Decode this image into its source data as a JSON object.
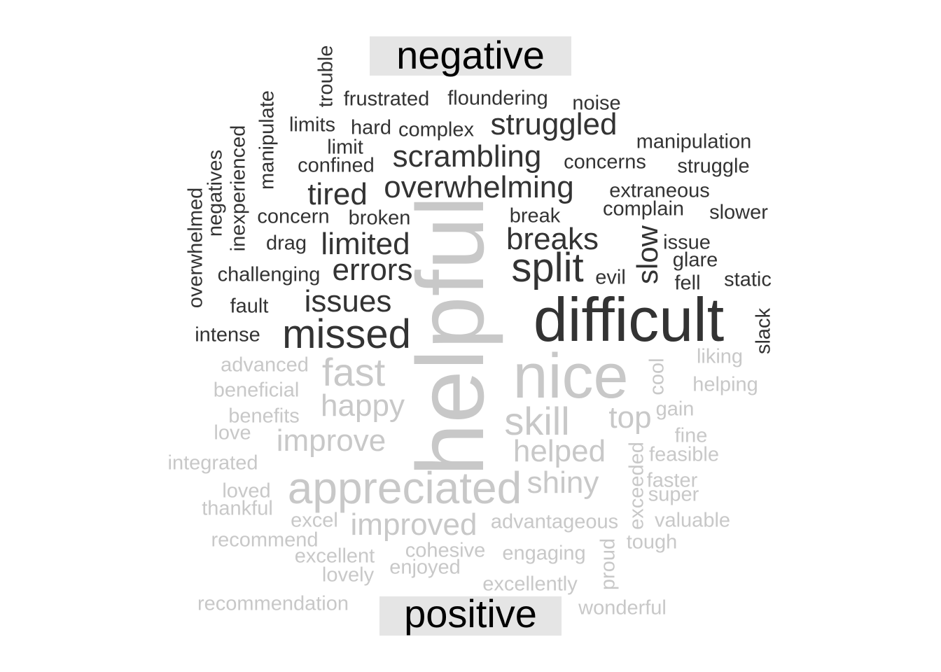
{
  "groups": {
    "negative": {
      "label": "negative",
      "color": "#333333",
      "words": [
        "difficult",
        "split",
        "missed",
        "breaks",
        "struggled",
        "scrambling",
        "overwhelming",
        "tired",
        "limited",
        "errors",
        "issues",
        "slow",
        "frustrated",
        "floundering",
        "noise",
        "limits",
        "hard",
        "complex",
        "manipulation",
        "limit",
        "concerns",
        "struggle",
        "confined",
        "extraneous",
        "complain",
        "slower",
        "concern",
        "broken",
        "break",
        "issue",
        "drag",
        "glare",
        "challenging",
        "evil",
        "fell",
        "static",
        "fault",
        "intense",
        "slack",
        "trouble",
        "manipulate",
        "inexperienced",
        "negatives",
        "overwhelmed"
      ]
    },
    "positive": {
      "label": "positive",
      "color": "#c8c8c8",
      "words": [
        "helpful",
        "nice",
        "appreciated",
        "fast",
        "happy",
        "skill",
        "improve",
        "improved",
        "helped",
        "shiny",
        "top",
        "advanced",
        "beneficial",
        "benefits",
        "love",
        "integrated",
        "loved",
        "thankful",
        "excel",
        "recommend",
        "excellent",
        "lovely",
        "recommendation",
        "cohesive",
        "enjoyed",
        "engaging",
        "excellently",
        "advantageous",
        "liking",
        "helping",
        "cool",
        "gain",
        "fine",
        "feasible",
        "faster",
        "super",
        "valuable",
        "tough",
        "exceeded",
        "proud",
        "wonderful"
      ]
    }
  }
}
